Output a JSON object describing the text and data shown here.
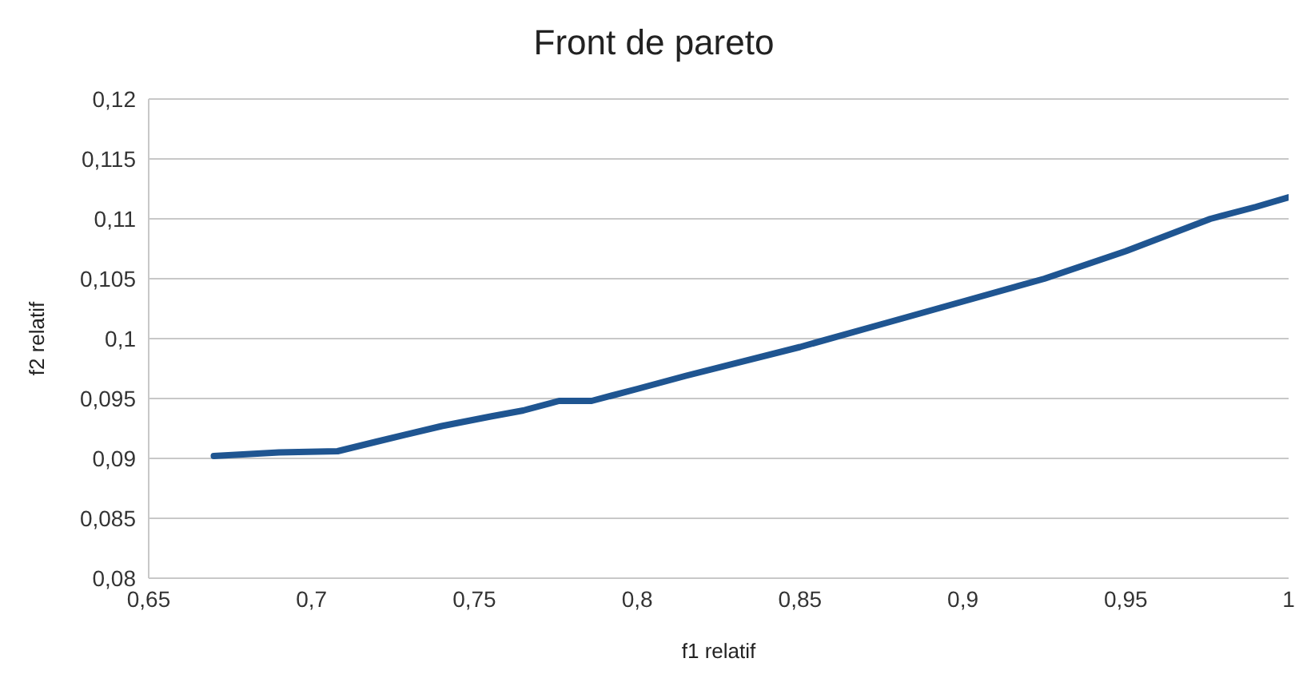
{
  "chart_data": {
    "type": "line",
    "title": "Front de pareto",
    "xlabel": "f1 relatif",
    "ylabel": "f2 relatif",
    "x": [
      0.67,
      0.69,
      0.708,
      0.72,
      0.74,
      0.755,
      0.765,
      0.776,
      0.786,
      0.8,
      0.815,
      0.85,
      0.875,
      0.9,
      0.925,
      0.95,
      0.976,
      0.99,
      1.0
    ],
    "series": [
      {
        "color": "#1f5591",
        "values": [
          0.0902,
          0.0905,
          0.0906,
          0.0914,
          0.0927,
          0.0935,
          0.094,
          0.0948,
          0.0948,
          0.0958,
          0.0969,
          0.0993,
          0.1012,
          0.1031,
          0.105,
          0.1073,
          0.11,
          0.111,
          0.1118
        ]
      }
    ],
    "xlim": [
      0.65,
      1
    ],
    "xticks": [
      {
        "value": 0.65,
        "label": "0,65"
      },
      {
        "value": 0.7,
        "label": "0,7"
      },
      {
        "value": 0.75,
        "label": "0,75"
      },
      {
        "value": 0.8,
        "label": "0,8"
      },
      {
        "value": 0.85,
        "label": "0,85"
      },
      {
        "value": 0.9,
        "label": "0,9"
      },
      {
        "value": 0.95,
        "label": "0,95"
      },
      {
        "value": 1,
        "label": "1"
      }
    ],
    "ylim": [
      0.08,
      0.12
    ],
    "yticks": [
      {
        "value": 0.08,
        "label": "0,08"
      },
      {
        "value": 0.085,
        "label": "0,085"
      },
      {
        "value": 0.09,
        "label": "0,09"
      },
      {
        "value": 0.095,
        "label": "0,095"
      },
      {
        "value": 0.1,
        "label": "0,1"
      },
      {
        "value": 0.105,
        "label": "0,105"
      },
      {
        "value": 0.11,
        "label": "0,11"
      },
      {
        "value": 0.115,
        "label": "0,115"
      },
      {
        "value": 0.12,
        "label": "0,12"
      }
    ],
    "grid": "y",
    "marker": "none",
    "line_style": "solid",
    "legend": false
  }
}
